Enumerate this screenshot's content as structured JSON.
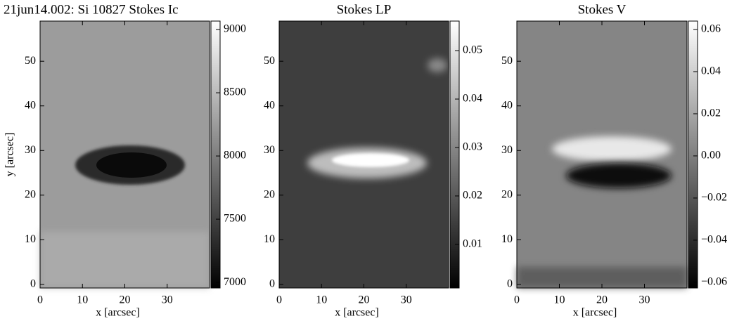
{
  "chart_data": [
    {
      "type": "image",
      "title": "21jun14.002: Si 10827 Stokes Ic",
      "xlabel": "x [arcsec]",
      "ylabel": "y [arcsec]",
      "xlim": [
        0,
        40
      ],
      "ylim": [
        -0.8,
        59
      ],
      "xticks": [
        0,
        10,
        20,
        30
      ],
      "yticks": [
        0,
        10,
        20,
        30,
        40,
        50
      ],
      "clim": [
        6956,
        9067
      ],
      "cticks": [
        7000,
        7500,
        8000,
        8500,
        9000
      ]
    },
    {
      "type": "image",
      "title": "Stokes LP",
      "xlabel": "x [arcsec]",
      "xlim": [
        0,
        40
      ],
      "ylim": [
        -0.8,
        59
      ],
      "xticks": [
        0,
        10,
        20,
        30
      ],
      "yticks": [
        0,
        10,
        20,
        30,
        40,
        50
      ],
      "clim": [
        0.001,
        0.0561
      ],
      "cticks": [
        0.01,
        0.02,
        0.03,
        0.04,
        0.05
      ]
    },
    {
      "type": "image",
      "title": "Stokes V",
      "xlabel": "x [arcsec]",
      "xlim": [
        0,
        40
      ],
      "ylim": [
        -0.8,
        59
      ],
      "xticks": [
        0,
        10,
        20,
        30
      ],
      "yticks": [
        0,
        10,
        20,
        30,
        40,
        50
      ],
      "clim": [
        -0.0627,
        0.064
      ],
      "cticks": [
        {
          "value": -0.06,
          "label": "−0.06"
        },
        {
          "value": -0.04,
          "label": "−0.04"
        },
        {
          "value": -0.02,
          "label": "−0.02"
        },
        {
          "value": 0,
          "label": "0.00"
        },
        0.02,
        0.04,
        0.06
      ]
    }
  ]
}
